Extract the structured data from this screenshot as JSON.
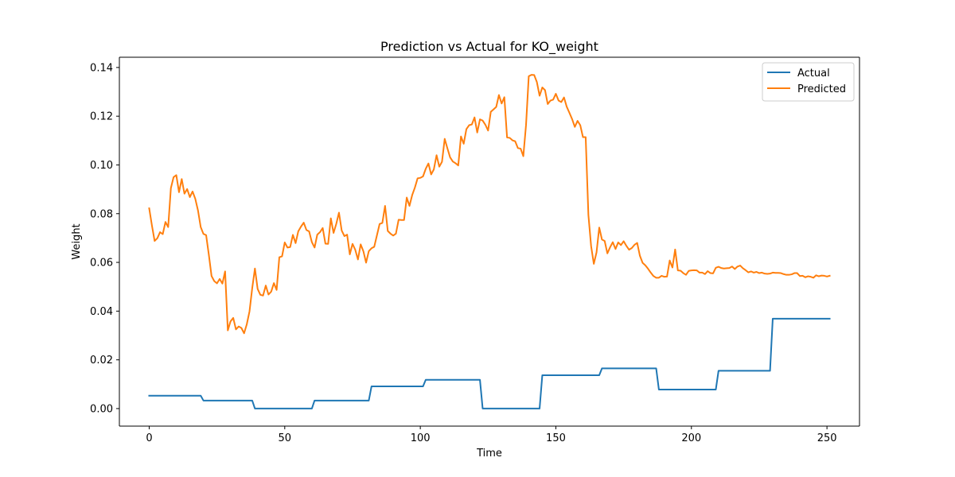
{
  "chart_data": {
    "type": "line",
    "title": "Prediction vs Actual for KO_weight",
    "xlabel": "Time",
    "ylabel": "Weight",
    "xlim": [
      -11,
      262
    ],
    "ylim": [
      -0.0072,
      0.1442
    ],
    "x_ticks": [
      0,
      50,
      100,
      150,
      200,
      250
    ],
    "x_tick_labels": [
      "0",
      "50",
      "100",
      "150",
      "200",
      "250"
    ],
    "y_ticks": [
      0.0,
      0.02,
      0.04,
      0.06,
      0.08,
      0.1,
      0.12,
      0.14
    ],
    "y_tick_labels": [
      "0.00",
      "0.02",
      "0.04",
      "0.06",
      "0.08",
      "0.10",
      "0.12",
      "0.14"
    ],
    "grid": false,
    "legend_position": "top-right",
    "series": [
      {
        "name": "Actual",
        "color": "#1f77b4",
        "points": [
          [
            0,
            0.0053
          ],
          [
            19,
            0.0053
          ],
          [
            20,
            0.0033
          ],
          [
            38,
            0.0033
          ],
          [
            39,
            0.0
          ],
          [
            60,
            0.0
          ],
          [
            61,
            0.0033
          ],
          [
            81,
            0.0033
          ],
          [
            82,
            0.0091
          ],
          [
            101,
            0.0091
          ],
          [
            102,
            0.0118
          ],
          [
            122,
            0.0118
          ],
          [
            123,
            0.0
          ],
          [
            144,
            0.0
          ],
          [
            145,
            0.0137
          ],
          [
            166,
            0.0137
          ],
          [
            167,
            0.0165
          ],
          [
            187,
            0.0165
          ],
          [
            188,
            0.0078
          ],
          [
            209,
            0.0078
          ],
          [
            210,
            0.0155
          ],
          [
            229,
            0.0155
          ],
          [
            230,
            0.0369
          ],
          [
            251,
            0.0369
          ]
        ]
      },
      {
        "name": "Predicted",
        "color": "#ff7f0e",
        "points": [
          [
            0,
            0.0822
          ],
          [
            1,
            0.0752
          ],
          [
            2,
            0.0688
          ],
          [
            3,
            0.0699
          ],
          [
            4,
            0.0724
          ],
          [
            5,
            0.0716
          ],
          [
            6,
            0.0766
          ],
          [
            7,
            0.0745
          ],
          [
            8,
            0.0905
          ],
          [
            9,
            0.095
          ],
          [
            10,
            0.0958
          ],
          [
            11,
            0.0888
          ],
          [
            12,
            0.0942
          ],
          [
            13,
            0.0882
          ],
          [
            14,
            0.0901
          ],
          [
            15,
            0.0868
          ],
          [
            16,
            0.0891
          ],
          [
            17,
            0.0861
          ],
          [
            18,
            0.0813
          ],
          [
            19,
            0.0745
          ],
          [
            20,
            0.0717
          ],
          [
            21,
            0.0712
          ],
          [
            22,
            0.0631
          ],
          [
            23,
            0.0544
          ],
          [
            24,
            0.0523
          ],
          [
            25,
            0.0514
          ],
          [
            26,
            0.0532
          ],
          [
            27,
            0.0513
          ],
          [
            28,
            0.0563
          ],
          [
            29,
            0.0321
          ],
          [
            30,
            0.0358
          ],
          [
            31,
            0.0372
          ],
          [
            32,
            0.0325
          ],
          [
            33,
            0.0337
          ],
          [
            34,
            0.0331
          ],
          [
            35,
            0.0309
          ],
          [
            36,
            0.0346
          ],
          [
            37,
            0.0399
          ],
          [
            38,
            0.0494
          ],
          [
            39,
            0.0575
          ],
          [
            40,
            0.0491
          ],
          [
            41,
            0.0467
          ],
          [
            42,
            0.0464
          ],
          [
            43,
            0.0505
          ],
          [
            44,
            0.0468
          ],
          [
            45,
            0.048
          ],
          [
            46,
            0.0515
          ],
          [
            47,
            0.0487
          ],
          [
            48,
            0.0621
          ],
          [
            49,
            0.0625
          ],
          [
            50,
            0.0682
          ],
          [
            51,
            0.0661
          ],
          [
            52,
            0.0663
          ],
          [
            53,
            0.0713
          ],
          [
            54,
            0.0679
          ],
          [
            55,
            0.0728
          ],
          [
            56,
            0.0747
          ],
          [
            57,
            0.0763
          ],
          [
            58,
            0.0733
          ],
          [
            59,
            0.0727
          ],
          [
            60,
            0.0683
          ],
          [
            61,
            0.0661
          ],
          [
            62,
            0.0714
          ],
          [
            63,
            0.0724
          ],
          [
            64,
            0.0741
          ],
          [
            65,
            0.0677
          ],
          [
            66,
            0.0676
          ],
          [
            67,
            0.0781
          ],
          [
            68,
            0.0721
          ],
          [
            69,
            0.0758
          ],
          [
            70,
            0.0804
          ],
          [
            71,
            0.0731
          ],
          [
            72,
            0.0708
          ],
          [
            73,
            0.0714
          ],
          [
            74,
            0.0633
          ],
          [
            75,
            0.0676
          ],
          [
            76,
            0.0652
          ],
          [
            77,
            0.0612
          ],
          [
            78,
            0.0674
          ],
          [
            79,
            0.0646
          ],
          [
            80,
            0.0599
          ],
          [
            81,
            0.0646
          ],
          [
            82,
            0.0658
          ],
          [
            83,
            0.0664
          ],
          [
            84,
            0.0711
          ],
          [
            85,
            0.0758
          ],
          [
            86,
            0.0762
          ],
          [
            87,
            0.0832
          ],
          [
            88,
            0.0729
          ],
          [
            89,
            0.0718
          ],
          [
            90,
            0.071
          ],
          [
            91,
            0.0718
          ],
          [
            92,
            0.0775
          ],
          [
            93,
            0.0774
          ],
          [
            94,
            0.0774
          ],
          [
            95,
            0.0866
          ],
          [
            96,
            0.0832
          ],
          [
            97,
            0.0876
          ],
          [
            98,
            0.0907
          ],
          [
            99,
            0.0945
          ],
          [
            100,
            0.0947
          ],
          [
            101,
            0.0953
          ],
          [
            102,
            0.0984
          ],
          [
            103,
            0.1006
          ],
          [
            104,
            0.0961
          ],
          [
            105,
            0.0982
          ],
          [
            106,
            0.104
          ],
          [
            107,
            0.0993
          ],
          [
            108,
            0.1013
          ],
          [
            109,
            0.1107
          ],
          [
            110,
            0.1068
          ],
          [
            111,
            0.1031
          ],
          [
            112,
            0.1014
          ],
          [
            113,
            0.1007
          ],
          [
            114,
            0.0998
          ],
          [
            115,
            0.1117
          ],
          [
            116,
            0.1087
          ],
          [
            117,
            0.1147
          ],
          [
            118,
            0.1163
          ],
          [
            119,
            0.1166
          ],
          [
            120,
            0.1195
          ],
          [
            121,
            0.1133
          ],
          [
            122,
            0.1187
          ],
          [
            123,
            0.1182
          ],
          [
            124,
            0.1165
          ],
          [
            125,
            0.1141
          ],
          [
            126,
            0.1218
          ],
          [
            127,
            0.1228
          ],
          [
            128,
            0.1238
          ],
          [
            129,
            0.1287
          ],
          [
            130,
            0.1252
          ],
          [
            131,
            0.1278
          ],
          [
            132,
            0.1113
          ],
          [
            133,
            0.1111
          ],
          [
            134,
            0.1101
          ],
          [
            135,
            0.1097
          ],
          [
            136,
            0.1069
          ],
          [
            137,
            0.1067
          ],
          [
            138,
            0.1036
          ],
          [
            139,
            0.1164
          ],
          [
            140,
            0.1364
          ],
          [
            141,
            0.137
          ],
          [
            142,
            0.1369
          ],
          [
            143,
            0.134
          ],
          [
            144,
            0.1284
          ],
          [
            145,
            0.1318
          ],
          [
            146,
            0.1307
          ],
          [
            147,
            0.125
          ],
          [
            148,
            0.1264
          ],
          [
            149,
            0.1268
          ],
          [
            150,
            0.1292
          ],
          [
            151,
            0.1264
          ],
          [
            152,
            0.1258
          ],
          [
            153,
            0.1277
          ],
          [
            154,
            0.1239
          ],
          [
            155,
            0.1214
          ],
          [
            156,
            0.1188
          ],
          [
            157,
            0.1156
          ],
          [
            158,
            0.1181
          ],
          [
            159,
            0.1163
          ],
          [
            160,
            0.1114
          ],
          [
            161,
            0.1114
          ],
          [
            162,
            0.0795
          ],
          [
            163,
            0.0667
          ],
          [
            164,
            0.0594
          ],
          [
            165,
            0.0641
          ],
          [
            166,
            0.0743
          ],
          [
            167,
            0.0694
          ],
          [
            168,
            0.0688
          ],
          [
            169,
            0.0637
          ],
          [
            170,
            0.0662
          ],
          [
            171,
            0.0683
          ],
          [
            172,
            0.0655
          ],
          [
            173,
            0.0682
          ],
          [
            174,
            0.0671
          ],
          [
            175,
            0.0687
          ],
          [
            176,
            0.0668
          ],
          [
            177,
            0.0652
          ],
          [
            178,
            0.0659
          ],
          [
            179,
            0.0672
          ],
          [
            180,
            0.068
          ],
          [
            181,
            0.0627
          ],
          [
            182,
            0.0598
          ],
          [
            183,
            0.0588
          ],
          [
            184,
            0.0574
          ],
          [
            185,
            0.0558
          ],
          [
            186,
            0.0544
          ],
          [
            187,
            0.0537
          ],
          [
            188,
            0.0537
          ],
          [
            189,
            0.0545
          ],
          [
            190,
            0.0541
          ],
          [
            191,
            0.0542
          ],
          [
            192,
            0.0608
          ],
          [
            193,
            0.0579
          ],
          [
            194,
            0.0653
          ],
          [
            195,
            0.0567
          ],
          [
            196,
            0.0566
          ],
          [
            197,
            0.0556
          ],
          [
            198,
            0.0549
          ],
          [
            199,
            0.0565
          ],
          [
            200,
            0.0567
          ],
          [
            201,
            0.0568
          ],
          [
            202,
            0.0567
          ],
          [
            203,
            0.0558
          ],
          [
            204,
            0.0558
          ],
          [
            205,
            0.0552
          ],
          [
            206,
            0.0564
          ],
          [
            207,
            0.0556
          ],
          [
            208,
            0.0555
          ],
          [
            209,
            0.0578
          ],
          [
            210,
            0.0582
          ],
          [
            211,
            0.0577
          ],
          [
            212,
            0.0575
          ],
          [
            213,
            0.0576
          ],
          [
            214,
            0.0577
          ],
          [
            215,
            0.0583
          ],
          [
            216,
            0.0573
          ],
          [
            217,
            0.0583
          ],
          [
            218,
            0.0587
          ],
          [
            219,
            0.0576
          ],
          [
            220,
            0.0568
          ],
          [
            221,
            0.0559
          ],
          [
            222,
            0.0563
          ],
          [
            223,
            0.0558
          ],
          [
            224,
            0.0561
          ],
          [
            225,
            0.0556
          ],
          [
            226,
            0.0558
          ],
          [
            227,
            0.0554
          ],
          [
            228,
            0.0553
          ],
          [
            229,
            0.0554
          ],
          [
            230,
            0.0558
          ],
          [
            231,
            0.0557
          ],
          [
            232,
            0.0557
          ],
          [
            233,
            0.0556
          ],
          [
            234,
            0.0552
          ],
          [
            235,
            0.0549
          ],
          [
            236,
            0.0549
          ],
          [
            237,
            0.0551
          ],
          [
            238,
            0.0556
          ],
          [
            239,
            0.0556
          ],
          [
            240,
            0.0544
          ],
          [
            241,
            0.0545
          ],
          [
            242,
            0.0539
          ],
          [
            243,
            0.0543
          ],
          [
            244,
            0.0541
          ],
          [
            245,
            0.0537
          ],
          [
            246,
            0.0547
          ],
          [
            247,
            0.0543
          ],
          [
            248,
            0.0546
          ],
          [
            249,
            0.0545
          ],
          [
            250,
            0.0542
          ],
          [
            251,
            0.0545
          ]
        ]
      }
    ]
  }
}
